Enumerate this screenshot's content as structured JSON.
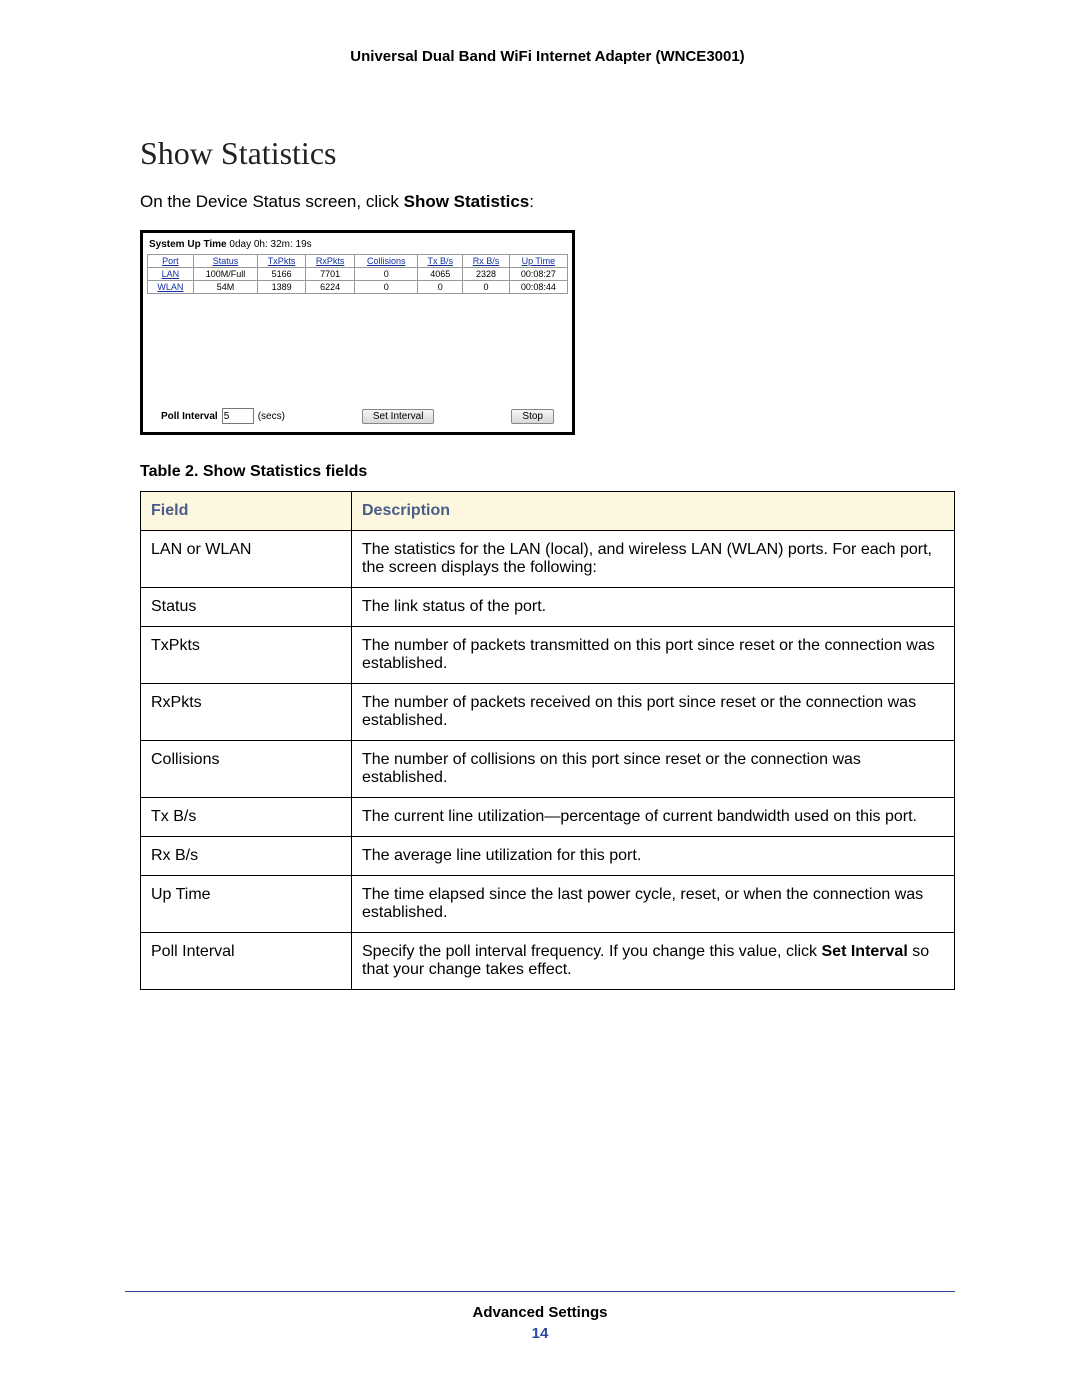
{
  "header": {
    "title": "Universal Dual Band WiFi Internet Adapter (WNCE3001)"
  },
  "section": {
    "title": "Show Statistics",
    "intro_pre": "On the Device Status screen, click ",
    "intro_bold": "Show Statistics",
    "intro_post": ":"
  },
  "shot": {
    "uptime_label": "System Up Time",
    "uptime_value": "0day 0h: 32m: 19s",
    "columns": [
      "Port",
      "Status",
      "TxPkts",
      "RxPkts",
      "Collisions",
      "Tx B/s",
      "Rx B/s",
      "Up Time"
    ],
    "rows": [
      [
        "LAN",
        "100M/Full",
        "5166",
        "7701",
        "0",
        "4065",
        "2328",
        "00:08:27"
      ],
      [
        "WLAN",
        "54M",
        "1389",
        "6224",
        "0",
        "0",
        "0",
        "00:08:44"
      ]
    ],
    "poll_label": "Poll Interval",
    "poll_value": "5",
    "poll_units": "(secs)",
    "set_btn": "Set Interval",
    "stop_btn": "Stop"
  },
  "caption": "Table 2.  Show Statistics fields",
  "fields": {
    "columns": [
      "Field",
      "Description"
    ],
    "rows": [
      {
        "f": "LAN or WLAN",
        "d": "The statistics for the LAN (local), and wireless LAN (WLAN) ports. For each port, the screen displays the following:"
      },
      {
        "f": "Status",
        "d": "The link status of the port."
      },
      {
        "f": "TxPkts",
        "d": "The number of packets transmitted on this port since reset or the connection was established."
      },
      {
        "f": "RxPkts",
        "d": "The number of packets received on this port since reset or the connection was established."
      },
      {
        "f": "Collisions",
        "d": "The number of collisions on this port since reset or the connection was established."
      },
      {
        "f": "Tx B/s",
        "d": "The current line utilization—percentage of current bandwidth used on this port."
      },
      {
        "f": "Rx B/s",
        "d": "The average line utilization for this port."
      },
      {
        "f": "Up Time",
        "d": "The time elapsed since the last power cycle, reset, or when the connection was established."
      },
      {
        "f": "Poll Interval",
        "d_pre": "Specify the poll interval frequency. If you change this value, click ",
        "d_b": "Set Interval",
        "d_post": " so that your change takes effect."
      }
    ]
  },
  "footer": {
    "title": "Advanced Settings",
    "page": "14"
  }
}
